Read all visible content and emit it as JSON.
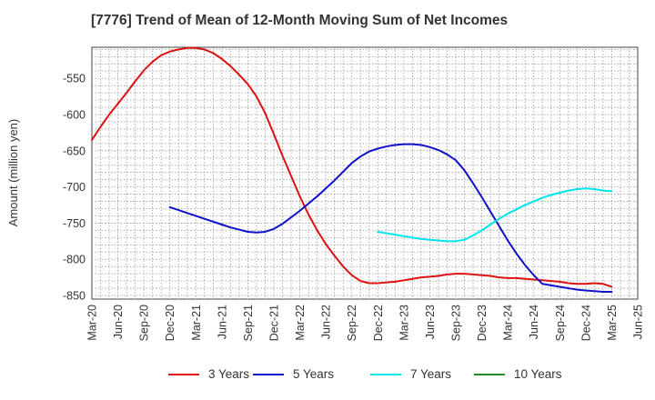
{
  "chart_data": {
    "type": "line",
    "title": "[7776]  Trend of Mean of 12-Month Moving Sum of Net Incomes",
    "ylabel": "Amount (million yen)",
    "xlabel": "",
    "y_ticks": [
      -550,
      -600,
      -650,
      -700,
      -750,
      -800,
      -850
    ],
    "ylim": [
      -855,
      -507
    ],
    "x_ticks": [
      "Mar-20",
      "Jun-20",
      "Sep-20",
      "Dec-20",
      "Mar-21",
      "Jun-21",
      "Sep-21",
      "Dec-21",
      "Mar-22",
      "Jun-22",
      "Sep-22",
      "Dec-22",
      "Mar-23",
      "Jun-23",
      "Sep-23",
      "Dec-23",
      "Mar-24",
      "Jun-24",
      "Sep-24",
      "Dec-24",
      "Mar-25",
      "Jun-25"
    ],
    "grid": true,
    "legend_position": "bottom",
    "series": [
      {
        "name": "3 Years",
        "color": "#dd1111",
        "x": [
          "Mar-20",
          "Apr-20",
          "May-20",
          "Jun-20",
          "Jul-20",
          "Aug-20",
          "Sep-20",
          "Oct-20",
          "Nov-20",
          "Dec-20",
          "Jan-21",
          "Feb-21",
          "Mar-21",
          "Apr-21",
          "May-21",
          "Jun-21",
          "Jul-21",
          "Aug-21",
          "Sep-21",
          "Oct-21",
          "Nov-21",
          "Dec-21",
          "Jan-22",
          "Feb-22",
          "Mar-22",
          "Apr-22",
          "May-22",
          "Jun-22",
          "Jul-22",
          "Aug-22",
          "Sep-22",
          "Oct-22",
          "Nov-22",
          "Dec-22",
          "Jan-23",
          "Feb-23",
          "Mar-23",
          "Apr-23",
          "May-23",
          "Jun-23",
          "Jul-23",
          "Aug-23",
          "Sep-23",
          "Oct-23",
          "Nov-23",
          "Dec-23",
          "Jan-24",
          "Feb-24",
          "Mar-24",
          "Apr-24",
          "May-24",
          "Jun-24",
          "Jul-24",
          "Aug-24",
          "Sep-24",
          "Oct-24",
          "Nov-24",
          "Dec-24",
          "Jan-25",
          "Feb-25",
          "Mar-25"
        ],
        "y": [
          -635,
          -617,
          -600,
          -585,
          -570,
          -554,
          -539,
          -527,
          -518,
          -513,
          -510,
          -508,
          -508,
          -510,
          -515,
          -523,
          -533,
          -545,
          -558,
          -575,
          -598,
          -627,
          -657,
          -685,
          -713,
          -738,
          -760,
          -779,
          -795,
          -810,
          -822,
          -830,
          -833,
          -833,
          -832,
          -831,
          -829,
          -827,
          -825,
          -824,
          -823,
          -821,
          -820,
          -820,
          -821,
          -822,
          -823,
          -825,
          -826,
          -826,
          -827,
          -828,
          -829,
          -830,
          -831,
          -833,
          -834,
          -834,
          -833,
          -834,
          -838
        ]
      },
      {
        "name": "5 Years",
        "color": "#1111cc",
        "x": [
          "Dec-20",
          "Jan-21",
          "Feb-21",
          "Mar-21",
          "Apr-21",
          "May-21",
          "Jun-21",
          "Jul-21",
          "Aug-21",
          "Sep-21",
          "Oct-21",
          "Nov-21",
          "Dec-21",
          "Jan-22",
          "Feb-22",
          "Mar-22",
          "Apr-22",
          "May-22",
          "Jun-22",
          "Jul-22",
          "Aug-22",
          "Sep-22",
          "Oct-22",
          "Nov-22",
          "Dec-22",
          "Jan-23",
          "Feb-23",
          "Mar-23",
          "Apr-23",
          "May-23",
          "Jun-23",
          "Jul-23",
          "Aug-23",
          "Sep-23",
          "Oct-23",
          "Nov-23",
          "Dec-23",
          "Jan-24",
          "Feb-24",
          "Mar-24",
          "Apr-24",
          "May-24",
          "Jun-24",
          "Jul-24",
          "Aug-24",
          "Sep-24",
          "Oct-24",
          "Nov-24",
          "Dec-24",
          "Jan-25",
          "Feb-25",
          "Mar-25"
        ],
        "y": [
          -728,
          -732,
          -736,
          -740,
          -744,
          -748,
          -752,
          -756,
          -759,
          -762,
          -763,
          -762,
          -758,
          -751,
          -742,
          -733,
          -723,
          -713,
          -702,
          -691,
          -679,
          -667,
          -658,
          -651,
          -647,
          -644,
          -642,
          -641,
          -641,
          -642,
          -645,
          -649,
          -655,
          -663,
          -677,
          -695,
          -714,
          -734,
          -754,
          -774,
          -792,
          -808,
          -822,
          -834,
          -836,
          -838,
          -840,
          -842,
          -843,
          -844,
          -845,
          -845
        ]
      },
      {
        "name": "7 Years",
        "color": "#00e5ee",
        "x": [
          "Dec-22",
          "Jan-23",
          "Feb-23",
          "Mar-23",
          "Apr-23",
          "May-23",
          "Jun-23",
          "Jul-23",
          "Aug-23",
          "Sep-23",
          "Oct-23",
          "Nov-23",
          "Dec-23",
          "Jan-24",
          "Feb-24",
          "Mar-24",
          "Apr-24",
          "May-24",
          "Jun-24",
          "Jul-24",
          "Aug-24",
          "Sep-24",
          "Oct-24",
          "Nov-24",
          "Dec-24",
          "Jan-25",
          "Feb-25",
          "Mar-25"
        ],
        "y": [
          -762,
          -764,
          -766,
          -768,
          -770,
          -772,
          -773,
          -774,
          -775,
          -775,
          -773,
          -767,
          -760,
          -752,
          -744,
          -737,
          -731,
          -725,
          -720,
          -715,
          -711,
          -708,
          -705,
          -703,
          -702,
          -703,
          -705,
          -706
        ]
      },
      {
        "name": "10 Years",
        "color": "#228b22",
        "x": [],
        "y": []
      }
    ]
  }
}
